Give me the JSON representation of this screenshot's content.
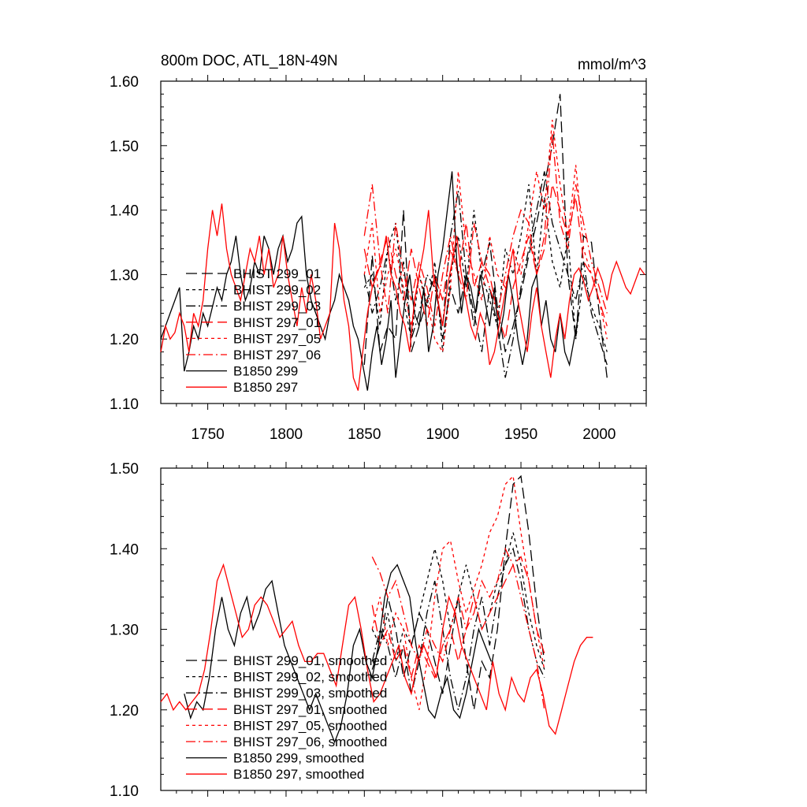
{
  "colors": {
    "black": "#000000",
    "red": "#ff0000"
  },
  "chart_data": [
    {
      "type": "line",
      "title": "800m DOC, ATL_18N-49N",
      "units": "mmol/m^3",
      "xlim": [
        1720,
        2030
      ],
      "ylim": [
        1.1,
        1.6
      ],
      "xticks": [
        1750,
        1800,
        1850,
        1900,
        1950,
        2000
      ],
      "yticks": [
        1.1,
        1.2,
        1.3,
        1.4,
        1.5,
        1.6
      ],
      "ytick_labels": [
        "1.10",
        "1.20",
        "1.30",
        "1.40",
        "1.50",
        "1.60"
      ],
      "xtick_labels": [
        "1750",
        "1800",
        "1850",
        "1900",
        "1950",
        "2000"
      ],
      "legend_position": "lower-left",
      "series": [
        {
          "name": "BHIST 299_01",
          "color": "#000000",
          "dash": "long-dash",
          "x0": 1850,
          "dx": 5,
          "values": [
            1.16,
            1.33,
            1.18,
            1.22,
            1.2,
            1.4,
            1.18,
            1.22,
            1.26,
            1.3,
            1.2,
            1.28,
            1.24,
            1.3,
            1.22,
            1.3,
            1.35,
            1.25,
            1.18,
            1.22,
            1.27,
            1.33,
            1.38,
            1.44,
            1.5,
            1.58,
            1.3,
            1.2,
            1.36,
            1.35,
            1.24,
            1.14
          ]
        },
        {
          "name": "BHIST 299_02",
          "color": "#000000",
          "dash": "short-dash",
          "x0": 1850,
          "dx": 5,
          "values": [
            1.28,
            1.3,
            1.22,
            1.34,
            1.38,
            1.26,
            1.2,
            1.3,
            1.25,
            1.32,
            1.18,
            1.3,
            1.36,
            1.28,
            1.4,
            1.3,
            1.26,
            1.22,
            1.34,
            1.3,
            1.36,
            1.44,
            1.3,
            1.42,
            1.32,
            1.28,
            1.36,
            1.2,
            1.3,
            1.25,
            1.22,
            1.18
          ]
        },
        {
          "name": "BHIST 299_03",
          "color": "#000000",
          "dash": "dash-dot",
          "x0": 1850,
          "dx": 5,
          "values": [
            1.3,
            1.24,
            1.28,
            1.34,
            1.26,
            1.32,
            1.2,
            1.24,
            1.3,
            1.28,
            1.22,
            1.36,
            1.43,
            1.3,
            1.24,
            1.18,
            1.28,
            1.22,
            1.14,
            1.2,
            1.28,
            1.34,
            1.4,
            1.46,
            1.38,
            1.34,
            1.3,
            1.26,
            1.32,
            1.24,
            1.2,
            1.16
          ]
        },
        {
          "name": "BHIST 297_01",
          "color": "#ff0000",
          "dash": "long-dash",
          "x0": 1850,
          "dx": 5,
          "values": [
            1.34,
            1.28,
            1.32,
            1.36,
            1.3,
            1.26,
            1.34,
            1.28,
            1.22,
            1.3,
            1.26,
            1.34,
            1.3,
            1.38,
            1.28,
            1.32,
            1.3,
            1.24,
            1.2,
            1.28,
            1.32,
            1.36,
            1.3,
            1.34,
            1.44,
            1.4,
            1.36,
            1.42,
            1.32,
            1.3,
            1.26,
            1.22
          ]
        },
        {
          "name": "BHIST 297_05",
          "color": "#ff0000",
          "dash": "short-dash",
          "x0": 1850,
          "dx": 5,
          "values": [
            1.3,
            1.38,
            1.24,
            1.3,
            1.34,
            1.28,
            1.22,
            1.3,
            1.26,
            1.2,
            1.18,
            1.28,
            1.46,
            1.34,
            1.3,
            1.26,
            1.36,
            1.3,
            1.28,
            1.34,
            1.3,
            1.38,
            1.46,
            1.4,
            1.54,
            1.44,
            1.36,
            1.47,
            1.34,
            1.3,
            1.26,
            1.2
          ]
        },
        {
          "name": "BHIST 297_06",
          "color": "#ff0000",
          "dash": "dash-dot",
          "x0": 1850,
          "dx": 5,
          "values": [
            1.36,
            1.44,
            1.32,
            1.24,
            1.38,
            1.3,
            1.26,
            1.32,
            1.28,
            1.22,
            1.3,
            1.36,
            1.3,
            1.26,
            1.38,
            1.32,
            1.28,
            1.24,
            1.3,
            1.36,
            1.4,
            1.38,
            1.3,
            1.36,
            1.52,
            1.38,
            1.34,
            1.44,
            1.38,
            1.32,
            1.28,
            1.24
          ]
        },
        {
          "name": "B1850 299",
          "color": "#000000",
          "dash": "solid",
          "x0": 1720,
          "dx": 3,
          "values": [
            1.2,
            1.22,
            1.24,
            1.26,
            1.28,
            1.15,
            1.18,
            1.22,
            1.2,
            1.24,
            1.22,
            1.25,
            1.28,
            1.26,
            1.3,
            1.32,
            1.36,
            1.3,
            1.26,
            1.28,
            1.32,
            1.3,
            1.36,
            1.34,
            1.3,
            1.34,
            1.36,
            1.32,
            1.34,
            1.38,
            1.39,
            1.3,
            1.26,
            1.24,
            1.22,
            1.2,
            1.24,
            1.26,
            1.3,
            1.28,
            1.26,
            1.22,
            1.2,
            1.16,
            1.12,
            1.18,
            1.22,
            1.16,
            1.2,
            1.26,
            1.14,
            1.2,
            1.26,
            1.3,
            1.24,
            1.22,
            1.28,
            1.18,
            1.22,
            1.3,
            1.34,
            1.4,
            1.46,
            1.32,
            1.24,
            1.3,
            1.28,
            1.24,
            1.3,
            1.26,
            1.22,
            1.28,
            1.2,
            1.24,
            1.3,
            1.26,
            1.2,
            1.16,
            1.2,
            1.28,
            1.3,
            1.22,
            1.26,
            1.2,
            1.18,
            1.24,
            1.18,
            1.16,
            1.2,
            1.24
          ]
        },
        {
          "name": "B1850 297",
          "color": "#ff0000",
          "dash": "solid",
          "x0": 1720,
          "dx": 3,
          "values": [
            1.18,
            1.22,
            1.2,
            1.21,
            1.24,
            1.22,
            1.18,
            1.24,
            1.22,
            1.26,
            1.34,
            1.4,
            1.36,
            1.41,
            1.34,
            1.3,
            1.28,
            1.26,
            1.3,
            1.34,
            1.32,
            1.36,
            1.3,
            1.34,
            1.28,
            1.3,
            1.36,
            1.3,
            1.26,
            1.22,
            1.28,
            1.24,
            1.3,
            1.26,
            1.2,
            1.22,
            1.24,
            1.38,
            1.34,
            1.26,
            1.22,
            1.14,
            1.12,
            1.18,
            1.24,
            1.28,
            1.3,
            1.32,
            1.36,
            1.3,
            1.28,
            1.24,
            1.22,
            1.18,
            1.26,
            1.3,
            1.34,
            1.4,
            1.3,
            1.26,
            1.22,
            1.28,
            1.32,
            1.36,
            1.3,
            1.26,
            1.22,
            1.2,
            1.24,
            1.22,
            1.16,
            1.18,
            1.22,
            1.26,
            1.3,
            1.34,
            1.26,
            1.22,
            1.18,
            1.24,
            1.28,
            1.22,
            1.18,
            1.14,
            1.2,
            1.24,
            1.2,
            1.26,
            1.3,
            1.31,
            1.29,
            1.26,
            1.28,
            1.31,
            1.29,
            1.26,
            1.3,
            1.32,
            1.3,
            1.28,
            1.27,
            1.29,
            1.31,
            1.3
          ]
        }
      ]
    },
    {
      "type": "line",
      "xlim": [
        1720,
        2030
      ],
      "ylim": [
        1.1,
        1.5
      ],
      "xticks": [
        1750,
        1800,
        1850,
        1900,
        1950,
        2000
      ],
      "yticks": [
        1.1,
        1.2,
        1.3,
        1.4,
        1.5
      ],
      "ytick_labels": [
        "1.10",
        "1.20",
        "1.30",
        "1.40",
        "1.50"
      ],
      "legend_position": "lower-left",
      "series": [
        {
          "name": "BHIST 299_01, smoothed",
          "color": "#000000",
          "dash": "long-dash",
          "x0": 1855,
          "dx": 5,
          "values": [
            1.25,
            1.28,
            1.34,
            1.3,
            1.24,
            1.28,
            1.32,
            1.3,
            1.26,
            1.22,
            1.28,
            1.34,
            1.26,
            1.2,
            1.26,
            1.24,
            1.3,
            1.4,
            1.48,
            1.49,
            1.42,
            1.33,
            1.26
          ]
        },
        {
          "name": "BHIST 299_02, smoothed",
          "color": "#000000",
          "dash": "short-dash",
          "x0": 1855,
          "dx": 5,
          "values": [
            1.3,
            1.28,
            1.32,
            1.26,
            1.3,
            1.28,
            1.32,
            1.36,
            1.4,
            1.36,
            1.3,
            1.34,
            1.38,
            1.34,
            1.3,
            1.32,
            1.36,
            1.38,
            1.42,
            1.38,
            1.32,
            1.28,
            1.25
          ]
        },
        {
          "name": "BHIST 299_03, smoothed",
          "color": "#000000",
          "dash": "dash-dot",
          "x0": 1855,
          "dx": 5,
          "values": [
            1.26,
            1.3,
            1.28,
            1.24,
            1.28,
            1.22,
            1.26,
            1.32,
            1.36,
            1.3,
            1.24,
            1.2,
            1.24,
            1.3,
            1.34,
            1.28,
            1.34,
            1.38,
            1.4,
            1.36,
            1.3,
            1.26,
            1.24
          ]
        },
        {
          "name": "BHIST 297_01, smoothed",
          "color": "#ff0000",
          "dash": "long-dash",
          "x0": 1855,
          "dx": 5,
          "values": [
            1.33,
            1.28,
            1.3,
            1.26,
            1.28,
            1.24,
            1.28,
            1.26,
            1.24,
            1.28,
            1.3,
            1.26,
            1.3,
            1.34,
            1.3,
            1.32,
            1.34,
            1.36,
            1.38,
            1.39,
            1.36,
            1.3,
            1.27
          ]
        },
        {
          "name": "BHIST 297_05, smoothed",
          "color": "#ff0000",
          "dash": "short-dash",
          "x0": 1855,
          "dx": 5,
          "values": [
            1.3,
            1.34,
            1.28,
            1.32,
            1.3,
            1.24,
            1.2,
            1.26,
            1.34,
            1.4,
            1.41,
            1.36,
            1.32,
            1.35,
            1.38,
            1.42,
            1.44,
            1.48,
            1.49,
            1.42,
            1.36,
            1.3,
            1.25
          ]
        },
        {
          "name": "BHIST 297_06, smoothed",
          "color": "#ff0000",
          "dash": "dash-dot",
          "x0": 1855,
          "dx": 5,
          "values": [
            1.39,
            1.37,
            1.34,
            1.36,
            1.32,
            1.28,
            1.26,
            1.3,
            1.28,
            1.26,
            1.3,
            1.34,
            1.3,
            1.32,
            1.36,
            1.34,
            1.36,
            1.4,
            1.38,
            1.34,
            1.3,
            1.26,
            1.2
          ]
        },
        {
          "name": "B1850 299, smoothed",
          "color": "#000000",
          "dash": "solid",
          "x0": 1735,
          "dx": 4,
          "values": [
            1.22,
            1.19,
            1.21,
            1.2,
            1.24,
            1.3,
            1.34,
            1.3,
            1.28,
            1.32,
            1.34,
            1.3,
            1.32,
            1.35,
            1.36,
            1.32,
            1.28,
            1.26,
            1.24,
            1.22,
            1.2,
            1.22,
            1.2,
            1.18,
            1.16,
            1.18,
            1.22,
            1.28,
            1.3,
            1.26,
            1.24,
            1.28,
            1.34,
            1.37,
            1.38,
            1.36,
            1.34,
            1.28,
            1.24,
            1.2,
            1.19,
            1.22,
            1.24,
            1.2,
            1.19,
            1.22,
            1.26,
            1.3,
            1.28,
            1.26
          ]
        },
        {
          "name": "B1850 297, smoothed",
          "color": "#ff0000",
          "dash": "solid",
          "x0": 1720,
          "dx": 4,
          "values": [
            1.21,
            1.22,
            1.2,
            1.21,
            1.2,
            1.21,
            1.22,
            1.25,
            1.3,
            1.36,
            1.38,
            1.35,
            1.32,
            1.29,
            1.3,
            1.33,
            1.34,
            1.33,
            1.31,
            1.29,
            1.3,
            1.31,
            1.28,
            1.26,
            1.26,
            1.27,
            1.27,
            1.25,
            1.23,
            1.28,
            1.33,
            1.34,
            1.3,
            1.25,
            1.21,
            1.22,
            1.24,
            1.26,
            1.28,
            1.24,
            1.22,
            1.26,
            1.28,
            1.26,
            1.24,
            1.3,
            1.34,
            1.32,
            1.28,
            1.26,
            1.24,
            1.22,
            1.2,
            1.26,
            1.22,
            1.2,
            1.24,
            1.22,
            1.21,
            1.24,
            1.25,
            1.22,
            1.18,
            1.17,
            1.2,
            1.23,
            1.26,
            1.28,
            1.29,
            1.29
          ]
        }
      ]
    }
  ]
}
